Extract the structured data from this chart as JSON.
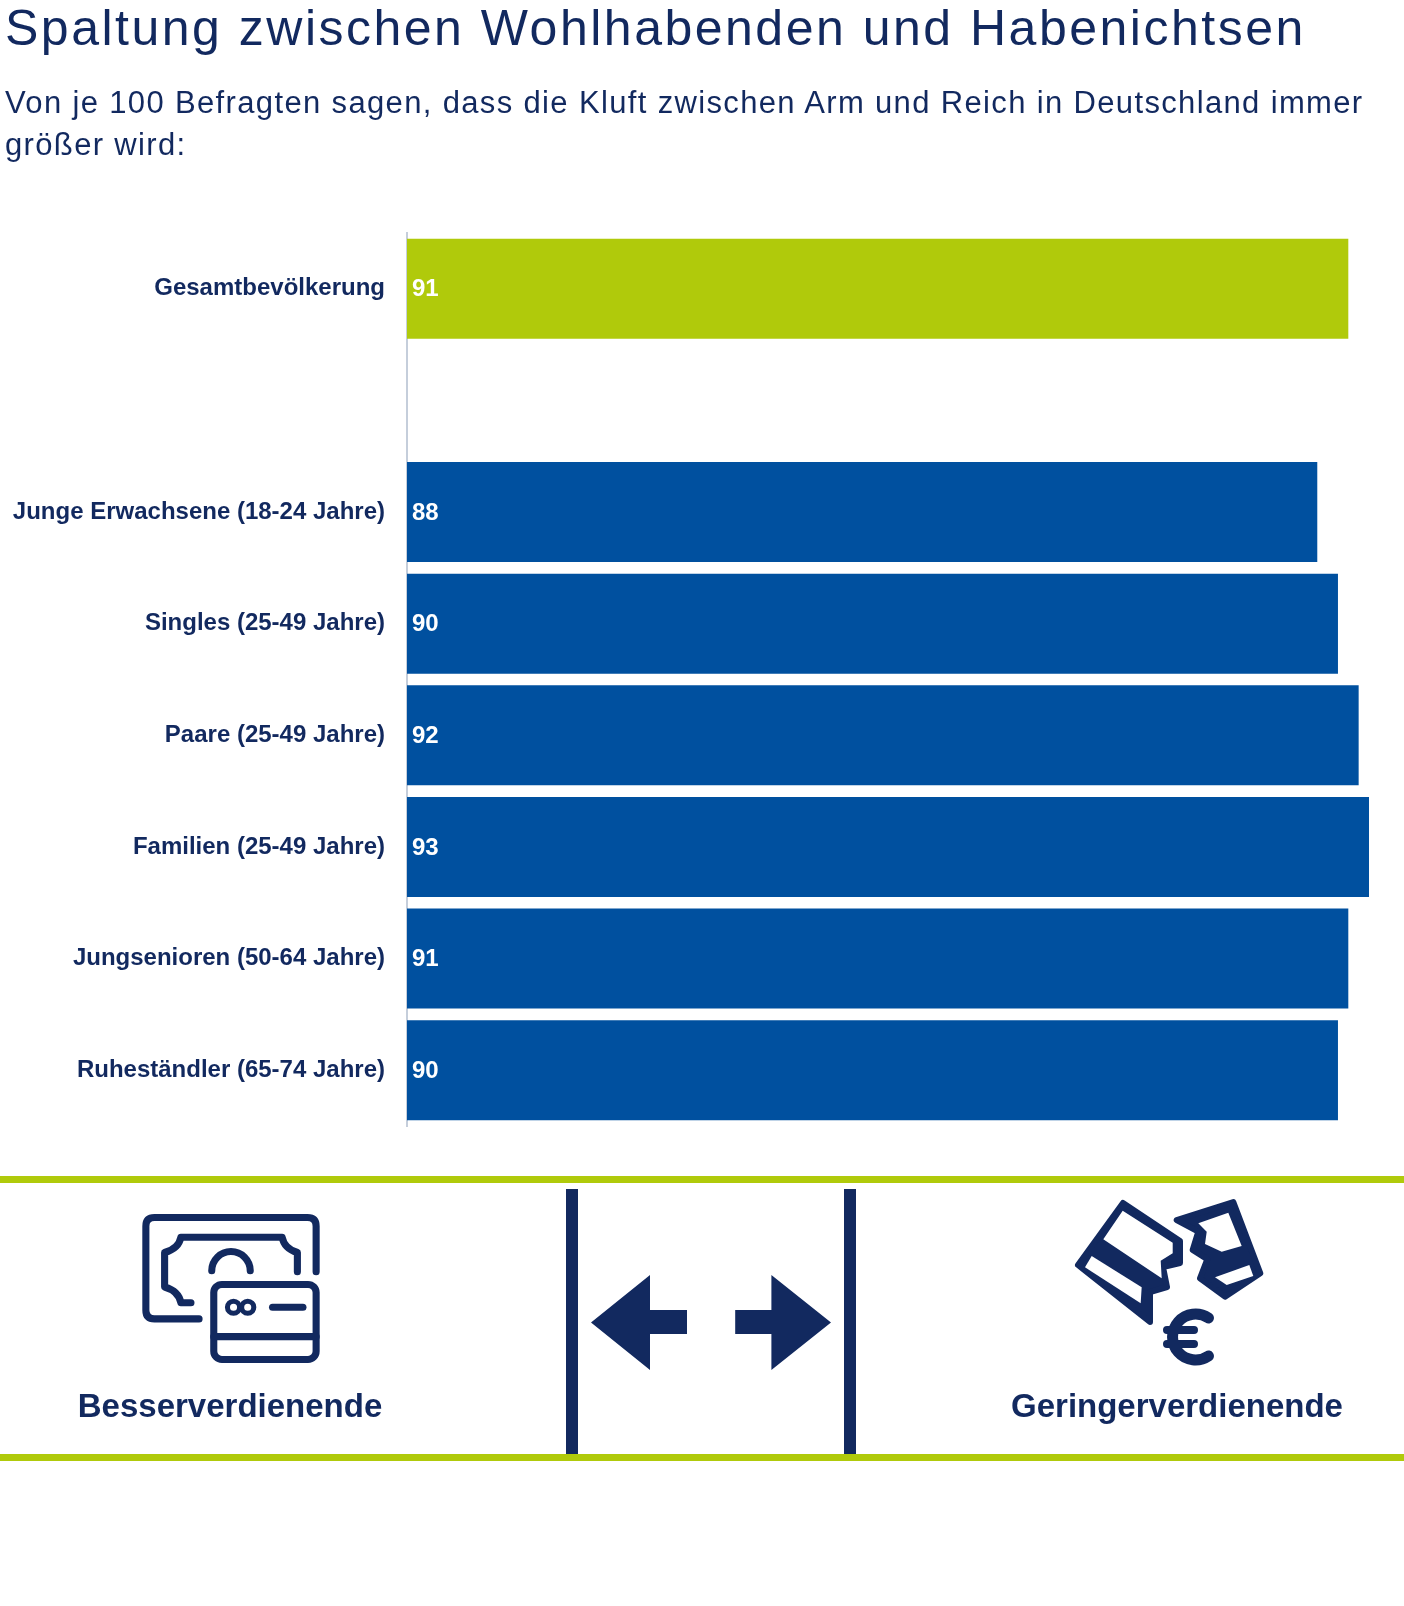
{
  "chart_data": {
    "type": "bar",
    "orientation": "horizontal",
    "title": "Spaltung zwischen Wohlhabenden und Habenichtsen",
    "subtitle": "Von je 100 Befragten sagen, dass die Kluft zwischen Arm und Reich in Deutschland immer größer wird:",
    "categories": [
      "Gesamtbevölkerung",
      null,
      "Junge Erwachsene (18-24 Jahre)",
      "Singles (25-49 Jahre)",
      "Paare (25-49 Jahre)",
      "Familien (25-49 Jahre)",
      "Jungsenioren (50-64 Jahre)",
      "Ruheständler (65-74 Jahre)"
    ],
    "values": [
      91,
      null,
      88,
      90,
      92,
      93,
      91,
      90
    ],
    "colors": [
      "#b0ca0b",
      null,
      "#00509f",
      "#00509f",
      "#00509f",
      "#00509f",
      "#00509f",
      "#00509f"
    ],
    "data_labels": true,
    "tick_labels": "y",
    "annotations": [
      "Besserverdienende",
      "Geringerverdienende"
    ]
  }
}
